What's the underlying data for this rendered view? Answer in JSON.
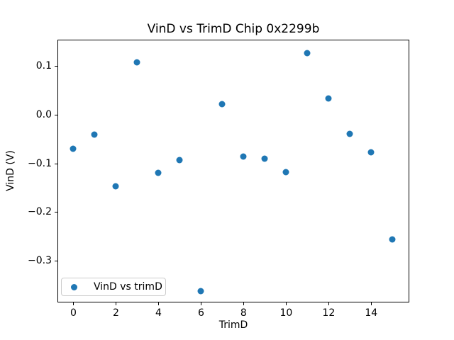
{
  "figure": {
    "background": "#ffffff",
    "text_color": "#000000"
  },
  "chart_data": {
    "type": "scatter",
    "title": "VinD vs TrimD Chip 0x2299b",
    "xlabel": "TrimD",
    "ylabel": "VinD (V)",
    "grid": false,
    "xlim": [
      -0.75,
      15.79
    ],
    "ylim": [
      -0.386,
      0.154
    ],
    "xticks": [
      0,
      2,
      4,
      6,
      8,
      10,
      12,
      14
    ],
    "xtick_labels": [
      "0",
      "2",
      "4",
      "6",
      "8",
      "10",
      "12",
      "14"
    ],
    "yticks": [
      0.1,
      0.0,
      -0.1,
      -0.2,
      -0.3
    ],
    "ytick_labels": [
      "0.1",
      "0.0",
      "−0.1",
      "−0.2",
      "−0.3"
    ],
    "series": [
      {
        "name": "VinD vs trimD",
        "color": "#1f77b4",
        "x": [
          0,
          1,
          2,
          3,
          4,
          5,
          6,
          7,
          8,
          9,
          10,
          11,
          12,
          13,
          14,
          15
        ],
        "y": [
          -0.07,
          -0.041,
          -0.148,
          0.108,
          -0.12,
          -0.094,
          -0.362,
          0.021,
          -0.086,
          -0.09,
          -0.118,
          0.127,
          0.033,
          -0.039,
          -0.077,
          -0.256
        ]
      }
    ],
    "legend": {
      "position": "lower left",
      "entries": [
        "VinD vs trimD"
      ]
    }
  }
}
